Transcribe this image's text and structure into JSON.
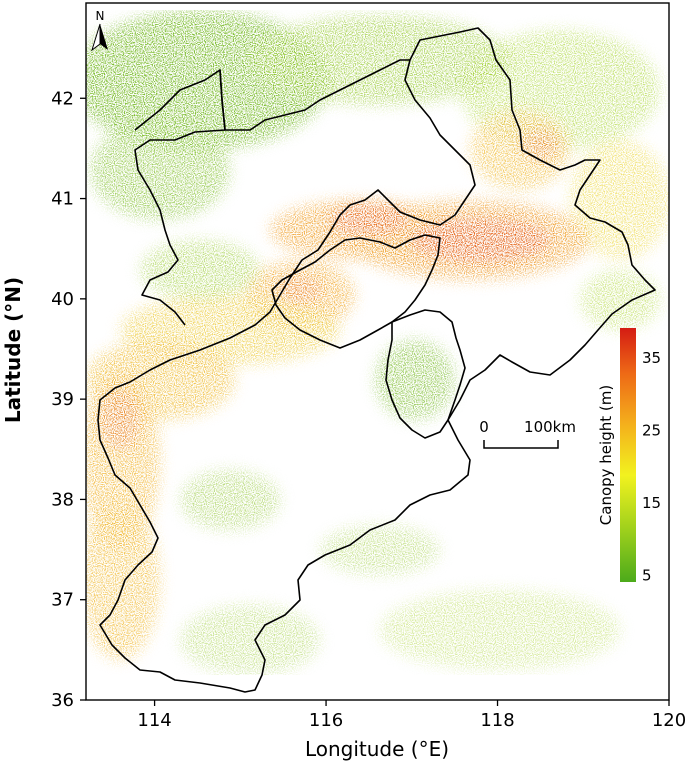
{
  "axes": {
    "xlabel": "Longitude (°E)",
    "ylabel": "Latitude (°N)",
    "xlim": [
      113.2,
      120.0
    ],
    "ylim": [
      36.0,
      42.95
    ],
    "xticks": [
      {
        "value": 114,
        "label": "114"
      },
      {
        "value": 116,
        "label": "116"
      },
      {
        "value": 118,
        "label": "118"
      },
      {
        "value": 120,
        "label": "120"
      }
    ],
    "yticks": [
      {
        "value": 36,
        "label": "36"
      },
      {
        "value": 37,
        "label": "37"
      },
      {
        "value": 38,
        "label": "38"
      },
      {
        "value": 39,
        "label": "39"
      },
      {
        "value": 40,
        "label": "40"
      },
      {
        "value": 41,
        "label": "41"
      },
      {
        "value": 42,
        "label": "42"
      }
    ]
  },
  "north_arrow": {
    "label": "N"
  },
  "scalebar": {
    "start_label": "0",
    "end_label": "100km"
  },
  "legend": {
    "title": "Canopy height (m)",
    "range": [
      4,
      39
    ],
    "ticks": [
      {
        "value": 35,
        "label": "35"
      },
      {
        "value": 25,
        "label": "25"
      },
      {
        "value": 15,
        "label": "15"
      },
      {
        "value": 5,
        "label": "5"
      }
    ],
    "colors": [
      "#4caa1b",
      "#9ccf1c",
      "#f2f21f",
      "#f4b01c",
      "#ee6a16",
      "#d41c13"
    ]
  },
  "colors": {
    "boundary": "#000000",
    "tall_canopy": "#e2500f",
    "mid_canopy": "#f0bd22",
    "low_canopy": "#74b91b"
  }
}
